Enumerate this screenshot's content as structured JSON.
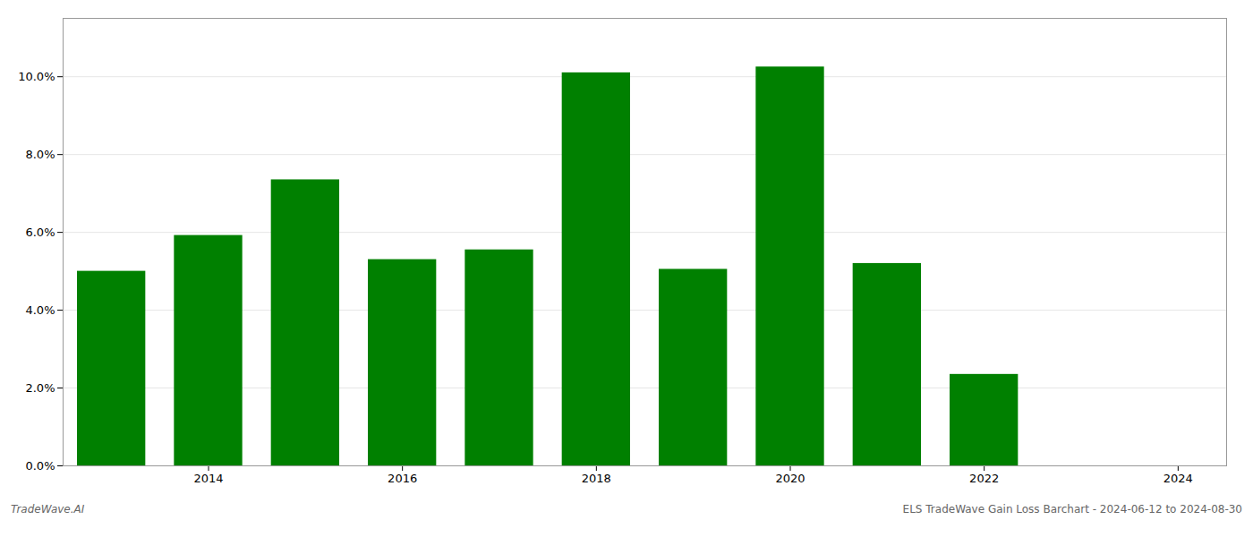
{
  "chart_data": {
    "type": "bar",
    "x": [
      2013,
      2014,
      2015,
      2016,
      2017,
      2018,
      2019,
      2020,
      2021,
      2022,
      2023
    ],
    "values": [
      0.05,
      0.0592,
      0.0735,
      0.053,
      0.0555,
      0.101,
      0.0505,
      0.1025,
      0.052,
      0.0235,
      0.0
    ],
    "color": "#008000",
    "xlim": [
      2012.5,
      2024.5
    ],
    "xticks": [
      2014,
      2016,
      2018,
      2020,
      2022,
      2024
    ],
    "ylim": [
      0,
      0.115
    ],
    "yticks": [
      {
        "value": 0.0,
        "label": "0.0%"
      },
      {
        "value": 0.02,
        "label": "2.0%"
      },
      {
        "value": 0.04,
        "label": "4.0%"
      },
      {
        "value": 0.06,
        "label": "6.0%"
      },
      {
        "value": 0.08,
        "label": "8.0%"
      },
      {
        "value": 0.1,
        "label": "10.0%"
      }
    ],
    "grid": true,
    "annotations": [
      "TradeWave.AI",
      "ELS TradeWave Gain Loss Barchart - 2024-06-12 to 2024-08-30"
    ]
  }
}
